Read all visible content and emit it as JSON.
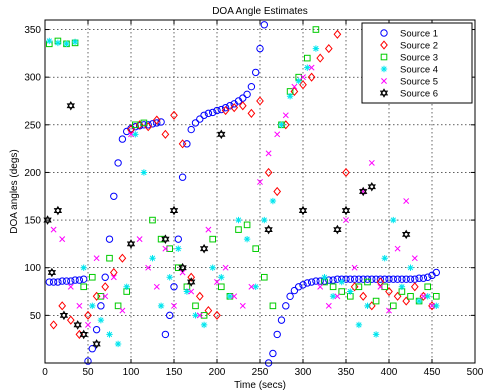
{
  "chart_data": {
    "type": "scatter",
    "title": "DOA Angle Estimates",
    "xlabel": "Time (secs)",
    "ylabel": "DOA angles (degs)",
    "xlim": [
      0,
      500
    ],
    "ylim": [
      0,
      360
    ],
    "xticks": [
      "0",
      "50",
      "100",
      "150",
      "200",
      "250",
      "300",
      "350",
      "400",
      "450",
      "500"
    ],
    "yticks": [
      "50",
      "100",
      "150",
      "200",
      "250",
      "300",
      "350"
    ],
    "grid": true,
    "legend_position": "top-right",
    "series": [
      {
        "name": "Source 1",
        "color": "#0000ff",
        "marker": "circle",
        "x": [
          5,
          10,
          15,
          20,
          25,
          30,
          35,
          40,
          45,
          50,
          55,
          60,
          65,
          70,
          75,
          80,
          85,
          90,
          95,
          100,
          105,
          110,
          115,
          120,
          125,
          130,
          135,
          140,
          145,
          150,
          155,
          160,
          165,
          170,
          175,
          180,
          185,
          190,
          195,
          200,
          205,
          210,
          215,
          220,
          225,
          230,
          235,
          240,
          245,
          250,
          255,
          260,
          265,
          270,
          275,
          280,
          285,
          290,
          295,
          300,
          305,
          310,
          315,
          320,
          325,
          330,
          335,
          340,
          345,
          350,
          355,
          360,
          365,
          370,
          375,
          380,
          385,
          390,
          395,
          400,
          405,
          410,
          415,
          420,
          425,
          430,
          435,
          440,
          445,
          450,
          455
        ],
        "y": [
          85,
          85,
          85,
          86,
          86,
          86,
          87,
          87,
          88,
          2,
          15,
          35,
          60,
          90,
          130,
          175,
          210,
          235,
          243,
          246,
          248,
          249,
          250,
          250,
          251,
          252,
          253,
          30,
          50,
          80,
          130,
          195,
          230,
          245,
          252,
          256,
          260,
          262,
          263,
          265,
          266,
          268,
          270,
          272,
          275,
          278,
          282,
          290,
          305,
          330,
          355,
          0,
          10,
          30,
          45,
          60,
          70,
          76,
          80,
          82,
          84,
          85,
          86,
          86,
          86,
          87,
          87,
          88,
          88,
          88,
          88,
          88,
          88,
          88,
          88,
          88,
          88,
          88,
          88,
          88,
          88,
          88,
          88,
          88,
          88,
          88,
          89,
          89,
          90,
          92,
          95
        ]
      },
      {
        "name": "Source 2",
        "color": "#ff0000",
        "marker": "diamond",
        "x": [
          10,
          20,
          30,
          40,
          50,
          60,
          70,
          80,
          90,
          100,
          110,
          120,
          130,
          140,
          150,
          160,
          170,
          180,
          190,
          200,
          210,
          220,
          230,
          240,
          250,
          260,
          270,
          280,
          290,
          300,
          310,
          320,
          330,
          340,
          350,
          360,
          370,
          380,
          390,
          400,
          410,
          420,
          430,
          440,
          450
        ],
        "y": [
          40,
          60,
          45,
          30,
          50,
          70,
          80,
          95,
          110,
          245,
          250,
          248,
          255,
          240,
          260,
          230,
          90,
          70,
          55,
          50,
          265,
          268,
          270,
          262,
          275,
          200,
          180,
          250,
          285,
          292,
          300,
          320,
          330,
          345,
          200,
          80,
          70,
          60,
          85,
          75,
          70,
          65,
          80,
          70,
          60
        ]
      },
      {
        "name": "Source 3",
        "color": "#00cc00",
        "marker": "square",
        "x": [
          5,
          15,
          25,
          35,
          45,
          55,
          65,
          75,
          85,
          95,
          105,
          115,
          125,
          135,
          145,
          155,
          165,
          175,
          185,
          195,
          205,
          215,
          225,
          235,
          245,
          255,
          265,
          275,
          285,
          295,
          305,
          315,
          325,
          335,
          345,
          355,
          365,
          375,
          385,
          395,
          405,
          415,
          425,
          435,
          445,
          455
        ],
        "y": [
          335,
          338,
          335,
          336,
          80,
          90,
          70,
          110,
          60,
          75,
          250,
          252,
          150,
          130,
          120,
          100,
          80,
          60,
          50,
          130,
          80,
          70,
          140,
          145,
          120,
          90,
          60,
          250,
          285,
          300,
          320,
          350,
          85,
          80,
          75,
          70,
          80,
          85,
          65,
          80,
          60,
          75,
          70,
          65,
          80,
          70
        ]
      },
      {
        "name": "Source 4",
        "color": "#00e5ee",
        "marker": "asterisk",
        "x": [
          5,
          15,
          25,
          35,
          45,
          55,
          65,
          75,
          85,
          95,
          105,
          115,
          125,
          135,
          145,
          155,
          165,
          175,
          185,
          195,
          205,
          215,
          225,
          235,
          245,
          255,
          265,
          275,
          285,
          295,
          305,
          315,
          325,
          335,
          345,
          355,
          365,
          375,
          385,
          395,
          405,
          415,
          425,
          435,
          445,
          455
        ],
        "y": [
          338,
          336,
          335,
          337,
          100,
          60,
          45,
          30,
          20,
          80,
          240,
          200,
          110,
          60,
          90,
          120,
          75,
          50,
          40,
          100,
          90,
          70,
          150,
          130,
          80,
          150,
          170,
          250,
          280,
          296,
          310,
          330,
          90,
          70,
          85,
          75,
          40,
          60,
          30,
          110,
          150,
          80,
          100,
          65,
          70,
          60
        ]
      },
      {
        "name": "Source 5",
        "color": "#ff00ff",
        "marker": "x",
        "x": [
          10,
          20,
          30,
          40,
          50,
          60,
          70,
          80,
          90,
          100,
          110,
          120,
          130,
          140,
          150,
          160,
          170,
          180,
          190,
          200,
          210,
          220,
          230,
          240,
          250,
          260,
          270,
          280,
          290,
          300,
          310,
          320,
          330,
          340,
          350,
          360,
          370,
          380,
          390,
          400,
          410,
          420,
          430,
          440,
          450
        ],
        "y": [
          140,
          130,
          80,
          60,
          40,
          110,
          70,
          90,
          55,
          240,
          130,
          100,
          80,
          120,
          60,
          95,
          75,
          50,
          140,
          85,
          100,
          70,
          60,
          80,
          190,
          220,
          240,
          260,
          290,
          300,
          310,
          80,
          60,
          70,
          150,
          100,
          180,
          210,
          80,
          55,
          120,
          170,
          110,
          70,
          60
        ]
      },
      {
        "name": "Source 6",
        "color": "#000000",
        "marker": "hexagram",
        "x": [
          3,
          8,
          15,
          22,
          30,
          38,
          45,
          60,
          100,
          140,
          150,
          160,
          170,
          185,
          205,
          260,
          300,
          340,
          350,
          370,
          380,
          390,
          420
        ],
        "y": [
          150,
          95,
          160,
          50,
          270,
          40,
          30,
          20,
          125,
          130,
          160,
          100,
          85,
          120,
          240,
          140,
          160,
          140,
          160,
          180,
          185,
          340,
          135
        ]
      }
    ]
  }
}
